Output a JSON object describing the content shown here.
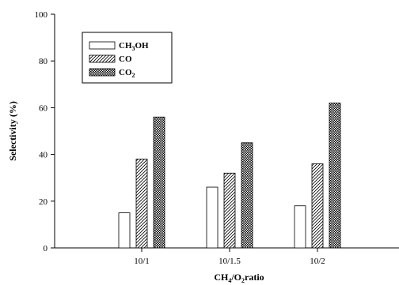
{
  "chart_data": {
    "type": "bar",
    "categories": [
      "10/1",
      "10/1.5",
      "10/2"
    ],
    "series": [
      {
        "name": "CH3OH",
        "values": [
          15,
          26,
          18
        ],
        "pattern": "empty"
      },
      {
        "name": "CO",
        "values": [
          38,
          32,
          36
        ],
        "pattern": "diagonal-hatch"
      },
      {
        "name": "CO2",
        "values": [
          56,
          45,
          62
        ],
        "pattern": "crosshatch"
      }
    ],
    "ylabel": "Selectivity (%)",
    "xlabel": "CH4/O2 ratio",
    "ylim": [
      0,
      100
    ],
    "yticks": [
      0,
      20,
      40,
      60,
      80,
      100
    ],
    "legend_position": "top-left",
    "grid": false
  },
  "legend": {
    "ch3oh": {
      "main": "CH",
      "sub": "3",
      "tail": "OH"
    },
    "co": {
      "main": "CO"
    },
    "co2": {
      "main": "CO",
      "sub": "2"
    }
  },
  "axis_title_x": {
    "a": "CH",
    "sub1": "4",
    "b": "/O",
    "sub2": "2",
    "c": "ratio"
  },
  "colors": {
    "stroke": "#000000",
    "fill": "#ffffff"
  }
}
